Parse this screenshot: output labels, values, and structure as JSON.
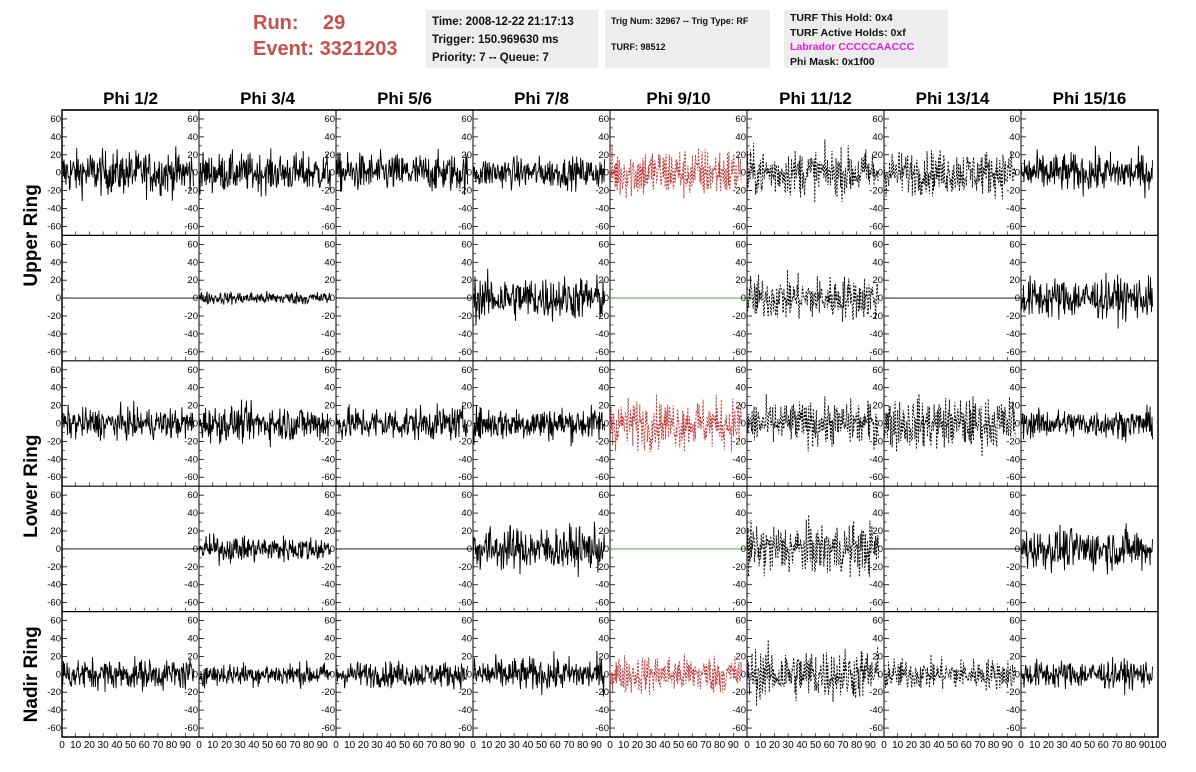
{
  "header": {
    "run_label": "Run:",
    "run_value": "29",
    "event_label": "Event:",
    "event_value": "3321203",
    "time": "Time: 2008-12-22 21:17:13",
    "trigger": "Trigger: 150.969630 ms",
    "priority": "Priority: 7 -- Queue: 7",
    "trig_num": "Trig Num: 32967 -- Trig Type: RF",
    "turf": "TURF: 98512",
    "turf_this_hold": "TURF This Hold: 0x4",
    "turf_active_holds": "TURF Active Holds: 0xf",
    "labrador": "Labrador CCCCCAACCC",
    "phi_mask": "Phi Mask: 0x1f00"
  },
  "colors": {
    "run_text": "#c8504a",
    "labrador": "#e020e0",
    "masked_trace": "#c03030",
    "flat_trace": "#3a9a3a",
    "trace": "#000000"
  },
  "chart_data": {
    "type": "line",
    "column_labels": [
      "Phi 1/2",
      "Phi 3/4",
      "Phi 5/6",
      "Phi 7/8",
      "Phi 9/10",
      "Phi 11/12",
      "Phi 13/14",
      "Phi 15/16"
    ],
    "row_labels": [
      "Upper Ring",
      "Lower Ring",
      "Nadir Ring"
    ],
    "row_label_span": [
      2,
      2,
      1
    ],
    "xlim": [
      0,
      100
    ],
    "ylim": [
      -70,
      70
    ],
    "yticks": [
      -60,
      -40,
      -20,
      0,
      20,
      40,
      60
    ],
    "xticks": [
      0,
      10,
      20,
      30,
      40,
      50,
      60,
      70,
      80,
      90,
      100
    ],
    "panels": [
      [
        {
          "style": "solid",
          "amp": 17
        },
        {
          "style": "solid",
          "amp": 15
        },
        {
          "style": "solid",
          "amp": 15
        },
        {
          "style": "solid",
          "amp": 12
        },
        {
          "style": "masked",
          "amp": 20
        },
        {
          "style": "dashed",
          "amp": 18
        },
        {
          "style": "dashed",
          "amp": 17
        },
        {
          "style": "solid",
          "amp": 15
        }
      ],
      [
        {
          "style": "flat",
          "amp": 0
        },
        {
          "style": "solid",
          "amp": 5
        },
        {
          "style": "flat",
          "amp": 0
        },
        {
          "style": "solid",
          "amp": 17
        },
        {
          "style": "flat_green",
          "amp": 0
        },
        {
          "style": "dashed",
          "amp": 17
        },
        {
          "style": "flat",
          "amp": 0
        },
        {
          "style": "solid",
          "amp": 16
        }
      ],
      [
        {
          "style": "solid",
          "amp": 12
        },
        {
          "style": "solid",
          "amp": 14
        },
        {
          "style": "solid",
          "amp": 13
        },
        {
          "style": "solid",
          "amp": 13
        },
        {
          "style": "masked",
          "amp": 19
        },
        {
          "style": "dashed",
          "amp": 17
        },
        {
          "style": "dashed",
          "amp": 20
        },
        {
          "style": "solid",
          "amp": 11
        }
      ],
      [
        {
          "style": "flat",
          "amp": 0
        },
        {
          "style": "solid",
          "amp": 10
        },
        {
          "style": "flat",
          "amp": 0
        },
        {
          "style": "solid",
          "amp": 17
        },
        {
          "style": "flat_green",
          "amp": 0
        },
        {
          "style": "dashed",
          "amp": 20
        },
        {
          "style": "flat",
          "amp": 0
        },
        {
          "style": "solid",
          "amp": 16
        }
      ],
      [
        {
          "style": "solid",
          "amp": 12
        },
        {
          "style": "solid",
          "amp": 9
        },
        {
          "style": "solid",
          "amp": 10
        },
        {
          "style": "solid",
          "amp": 13
        },
        {
          "style": "masked",
          "amp": 15
        },
        {
          "style": "dashed",
          "amp": 20
        },
        {
          "style": "dashed",
          "amp": 12
        },
        {
          "style": "solid",
          "amp": 11
        }
      ]
    ]
  }
}
